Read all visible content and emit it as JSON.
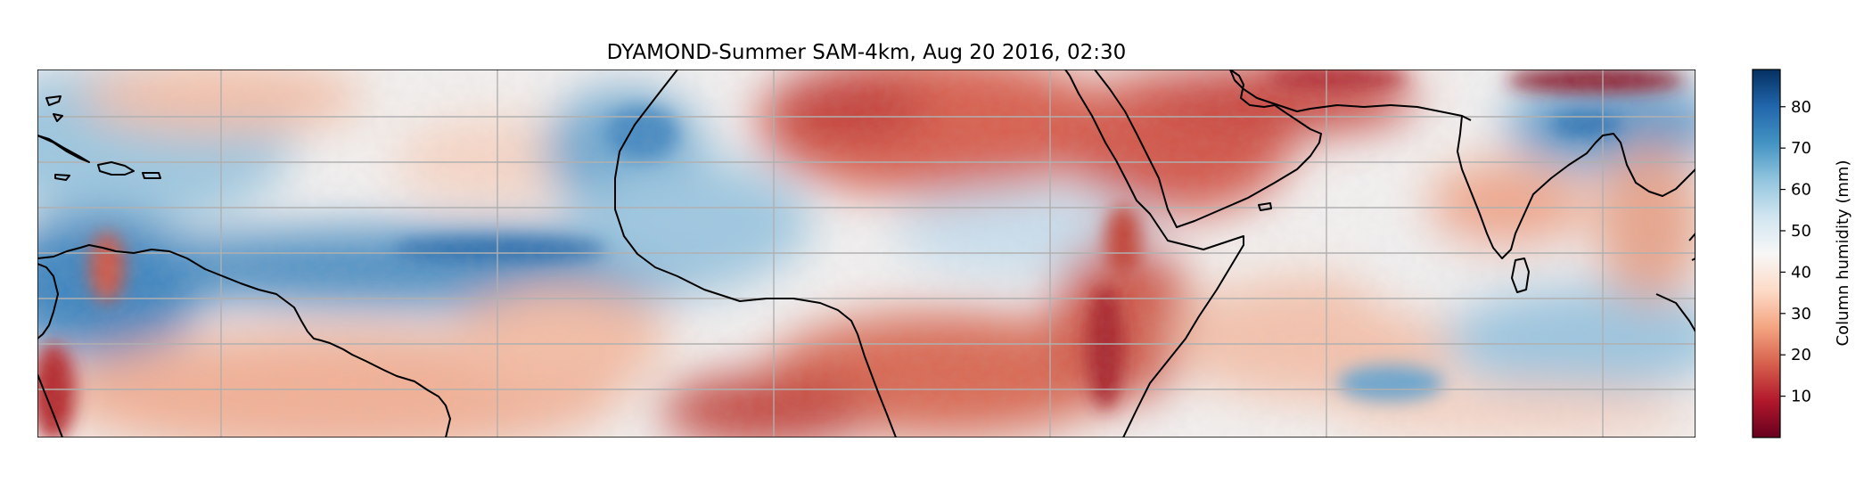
{
  "title": "DYAMOND-Summer SAM-4km, Aug 20 2016, 02:30",
  "colorbar": {
    "label": "Column humidity (mm)",
    "ticks": [
      10,
      20,
      30,
      40,
      50,
      60,
      70,
      80
    ],
    "range": [
      0,
      89
    ],
    "colormap": "RdBu",
    "stops": [
      "#67001f",
      "#b2182b",
      "#d6604d",
      "#f4a582",
      "#fddbc7",
      "#f7f7f7",
      "#d1e5f0",
      "#92c5de",
      "#4393c3",
      "#2166ac",
      "#053061"
    ]
  },
  "map": {
    "gridlines": true,
    "grid_color": "#b0b0b0",
    "coastline_color": "#000000",
    "ocean_color": "#f7f7f7"
  }
}
